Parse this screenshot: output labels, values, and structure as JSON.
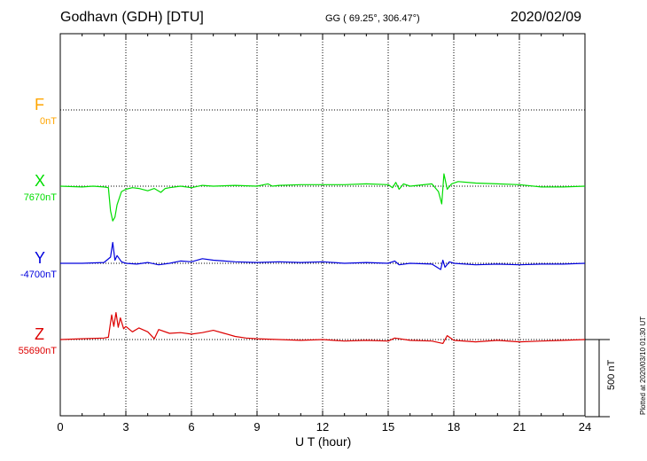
{
  "header": {
    "title": "Godhavn (GDH)  [DTU]",
    "coords": "GG ( 69.25°, 306.47°)",
    "date": "2020/02/09"
  },
  "plotted_note": "Plotted at 2020/03/10 01:30 UT",
  "scale_label": "500 nT",
  "chart_data": {
    "type": "line",
    "xlabel": "U T (hour)",
    "xlim": [
      0,
      24
    ],
    "xticks": [
      0,
      3,
      6,
      9,
      12,
      15,
      18,
      21,
      24
    ],
    "tick_labels": [
      "0",
      "3",
      "6",
      "9",
      "12",
      "15",
      "18",
      "21",
      "24"
    ],
    "scale_bar_nT": 500,
    "grid": true,
    "series": [
      {
        "name": "F",
        "baseline_label": "0nT",
        "color": "#ffa500",
        "points": []
      },
      {
        "name": "X",
        "baseline_label": "7670nT",
        "color": "#00dd00",
        "points": [
          [
            0,
            0
          ],
          [
            1,
            -5
          ],
          [
            1.5,
            0
          ],
          [
            2.0,
            -5
          ],
          [
            2.2,
            -10
          ],
          [
            2.3,
            -160
          ],
          [
            2.4,
            -225
          ],
          [
            2.5,
            -200
          ],
          [
            2.6,
            -120
          ],
          [
            2.8,
            -35
          ],
          [
            3.0,
            -20
          ],
          [
            3.3,
            -10
          ],
          [
            3.6,
            -15
          ],
          [
            4.0,
            -30
          ],
          [
            4.3,
            -15
          ],
          [
            4.6,
            -40
          ],
          [
            4.8,
            -15
          ],
          [
            5.0,
            -10
          ],
          [
            5.5,
            0
          ],
          [
            6.0,
            -10
          ],
          [
            6.5,
            5
          ],
          [
            7.0,
            0
          ],
          [
            8.0,
            5
          ],
          [
            9.0,
            0
          ],
          [
            9.5,
            15
          ],
          [
            9.7,
            0
          ],
          [
            10.0,
            5
          ],
          [
            11.0,
            10
          ],
          [
            12.0,
            10
          ],
          [
            13.0,
            10
          ],
          [
            14.0,
            15
          ],
          [
            15.0,
            10
          ],
          [
            15.2,
            -10
          ],
          [
            15.35,
            25
          ],
          [
            15.5,
            -20
          ],
          [
            15.7,
            15
          ],
          [
            16.0,
            0
          ],
          [
            17.0,
            15
          ],
          [
            17.3,
            -35
          ],
          [
            17.45,
            -115
          ],
          [
            17.55,
            80
          ],
          [
            17.7,
            -20
          ],
          [
            17.9,
            15
          ],
          [
            18.2,
            30
          ],
          [
            19.0,
            20
          ],
          [
            20.0,
            15
          ],
          [
            21.0,
            10
          ],
          [
            22.0,
            -5
          ],
          [
            23.0,
            -5
          ],
          [
            24.0,
            0
          ]
        ]
      },
      {
        "name": "Y",
        "baseline_label": "-4700nT",
        "color": "#0000dd",
        "points": [
          [
            0,
            0
          ],
          [
            1,
            0
          ],
          [
            2.0,
            5
          ],
          [
            2.3,
            40
          ],
          [
            2.4,
            135
          ],
          [
            2.5,
            20
          ],
          [
            2.6,
            50
          ],
          [
            2.8,
            10
          ],
          [
            3.0,
            0
          ],
          [
            3.5,
            -5
          ],
          [
            4.0,
            5
          ],
          [
            4.5,
            -10
          ],
          [
            5.0,
            0
          ],
          [
            5.5,
            15
          ],
          [
            6.0,
            10
          ],
          [
            6.5,
            30
          ],
          [
            7.0,
            20
          ],
          [
            7.5,
            15
          ],
          [
            8.0,
            10
          ],
          [
            9.0,
            5
          ],
          [
            10.0,
            10
          ],
          [
            11.0,
            5
          ],
          [
            12.0,
            10
          ],
          [
            13.0,
            0
          ],
          [
            14.0,
            5
          ],
          [
            15.0,
            0
          ],
          [
            15.3,
            15
          ],
          [
            15.5,
            -10
          ],
          [
            16.0,
            0
          ],
          [
            17.0,
            -5
          ],
          [
            17.4,
            -40
          ],
          [
            17.5,
            20
          ],
          [
            17.6,
            -25
          ],
          [
            17.8,
            10
          ],
          [
            18.0,
            0
          ],
          [
            19.0,
            -10
          ],
          [
            20.0,
            -5
          ],
          [
            21.0,
            -10
          ],
          [
            22.0,
            -5
          ],
          [
            23.0,
            -5
          ],
          [
            24.0,
            0
          ]
        ]
      },
      {
        "name": "Z",
        "baseline_label": "55690nT",
        "color": "#dd0000",
        "points": [
          [
            0,
            0
          ],
          [
            1,
            5
          ],
          [
            2.0,
            10
          ],
          [
            2.2,
            15
          ],
          [
            2.35,
            160
          ],
          [
            2.45,
            85
          ],
          [
            2.55,
            175
          ],
          [
            2.65,
            80
          ],
          [
            2.75,
            140
          ],
          [
            2.9,
            70
          ],
          [
            3.0,
            85
          ],
          [
            3.3,
            50
          ],
          [
            3.6,
            75
          ],
          [
            4.0,
            50
          ],
          [
            4.3,
            5
          ],
          [
            4.5,
            65
          ],
          [
            5.0,
            40
          ],
          [
            5.5,
            45
          ],
          [
            6.0,
            35
          ],
          [
            6.5,
            45
          ],
          [
            7.0,
            60
          ],
          [
            7.5,
            40
          ],
          [
            8.0,
            20
          ],
          [
            8.5,
            10
          ],
          [
            9.0,
            5
          ],
          [
            10.0,
            0
          ],
          [
            11.0,
            -5
          ],
          [
            12.0,
            0
          ],
          [
            13.0,
            -10
          ],
          [
            14.0,
            -5
          ],
          [
            15.0,
            -10
          ],
          [
            15.3,
            10
          ],
          [
            16.0,
            -5
          ],
          [
            17.0,
            -10
          ],
          [
            17.5,
            -25
          ],
          [
            17.7,
            25
          ],
          [
            18.0,
            -5
          ],
          [
            19.0,
            -15
          ],
          [
            20.0,
            -5
          ],
          [
            21.0,
            -15
          ],
          [
            22.0,
            -10
          ],
          [
            23.0,
            -5
          ],
          [
            24.0,
            0
          ]
        ]
      }
    ]
  }
}
